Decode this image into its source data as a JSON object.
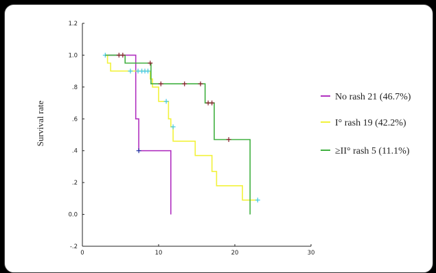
{
  "chart_data": {
    "type": "line",
    "ylabel": "Survival rate",
    "xlabel": "",
    "xlim": [
      0,
      30
    ],
    "ylim": [
      -0.2,
      1.2
    ],
    "x_ticks": [
      {
        "value": 0,
        "label": "0"
      },
      {
        "value": 10,
        "label": "10"
      },
      {
        "value": 20,
        "label": "20"
      },
      {
        "value": 30,
        "label": "30"
      }
    ],
    "y_ticks": [
      {
        "value": 1.2,
        "label": "1.2"
      },
      {
        "value": 1.0,
        "label": "1.0"
      },
      {
        "value": 0.8,
        "label": ".8"
      },
      {
        "value": 0.6,
        "label": ".6"
      },
      {
        "value": 0.4,
        "label": ".4"
      },
      {
        "value": 0.2,
        "label": ".2"
      },
      {
        "value": 0.0,
        "label": "0.0"
      },
      {
        "value": -0.2,
        "label": "-.2"
      }
    ],
    "grid": false,
    "legend_position": "right",
    "series": [
      {
        "name": "No rash 21 (46.7%)",
        "color": "#b030c0",
        "censor_color": "#2030a0",
        "steps": [
          [
            3.0,
            1.0
          ],
          [
            7.0,
            1.0
          ],
          [
            7.0,
            0.6
          ],
          [
            7.4,
            0.6
          ],
          [
            7.4,
            0.4
          ],
          [
            11.6,
            0.4
          ],
          [
            11.6,
            0.0
          ]
        ],
        "censored": [
          [
            7.4,
            0.4
          ]
        ]
      },
      {
        "name": "I° rash 19 (42.2%)",
        "color": "#f2f23a",
        "censor_color": "#40c8e8",
        "steps": [
          [
            3.0,
            1.0
          ],
          [
            3.3,
            1.0
          ],
          [
            3.3,
            0.95
          ],
          [
            3.7,
            0.95
          ],
          [
            3.7,
            0.9
          ],
          [
            8.9,
            0.9
          ],
          [
            8.9,
            0.85
          ],
          [
            9.2,
            0.85
          ],
          [
            9.2,
            0.8
          ],
          [
            10.0,
            0.8
          ],
          [
            10.0,
            0.71
          ],
          [
            11.3,
            0.71
          ],
          [
            11.3,
            0.6
          ],
          [
            11.6,
            0.6
          ],
          [
            11.6,
            0.55
          ],
          [
            11.9,
            0.55
          ],
          [
            11.9,
            0.46
          ],
          [
            14.8,
            0.46
          ],
          [
            14.8,
            0.37
          ],
          [
            17.0,
            0.37
          ],
          [
            17.0,
            0.27
          ],
          [
            17.6,
            0.27
          ],
          [
            17.6,
            0.18
          ],
          [
            21.0,
            0.18
          ],
          [
            21.0,
            0.09
          ],
          [
            23.0,
            0.09
          ]
        ],
        "censored": [
          [
            3.0,
            1.0
          ],
          [
            6.3,
            0.9
          ],
          [
            7.3,
            0.9
          ],
          [
            7.8,
            0.9
          ],
          [
            8.2,
            0.9
          ],
          [
            8.6,
            0.9
          ],
          [
            11.0,
            0.71
          ],
          [
            11.9,
            0.55
          ],
          [
            23.0,
            0.09
          ]
        ]
      },
      {
        "name": "≥II° rash 5 (11.1%)",
        "color": "#40b040",
        "censor_color": "#8a1a2a",
        "steps": [
          [
            3.0,
            1.0
          ],
          [
            5.6,
            1.0
          ],
          [
            5.6,
            0.95
          ],
          [
            9.0,
            0.95
          ],
          [
            9.0,
            0.82
          ],
          [
            16.1,
            0.82
          ],
          [
            16.1,
            0.7
          ],
          [
            17.3,
            0.7
          ],
          [
            17.3,
            0.47
          ],
          [
            22.0,
            0.47
          ],
          [
            22.0,
            0.0
          ]
        ],
        "censored": [
          [
            4.8,
            1.0
          ],
          [
            5.3,
            1.0
          ],
          [
            8.9,
            0.95
          ],
          [
            10.3,
            0.82
          ],
          [
            13.4,
            0.82
          ],
          [
            15.5,
            0.82
          ],
          [
            16.5,
            0.7
          ],
          [
            17.0,
            0.7
          ],
          [
            19.2,
            0.47
          ]
        ]
      }
    ]
  }
}
